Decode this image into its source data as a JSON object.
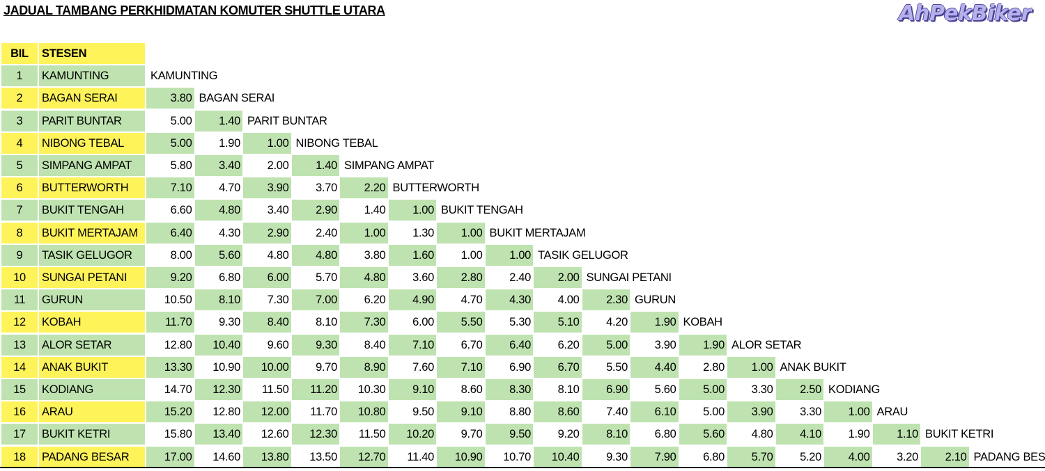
{
  "title": "JADUAL TAMBANG PERKHIDMATAN KOMUTER  SHUTTLE UTARA",
  "brand": "AhPekBiker",
  "colors": {
    "green": "#bfe3b0",
    "yellow": "#fff35a",
    "white": "#ffffff",
    "logo": "#b6b1ea"
  },
  "headers": {
    "bil": "BIL",
    "stesen": "STESEN"
  },
  "stations": [
    "KAMUNTING",
    "BAGAN SERAI",
    "PARIT BUNTAR",
    "NIBONG TEBAL",
    "SIMPANG AMPAT",
    "BUTTERWORTH",
    "BUKIT TENGAH",
    "BUKIT MERTAJAM",
    "TASIK GELUGOR",
    "SUNGAI PETANI",
    "GURUN",
    "KOBAH",
    "ALOR SETAR",
    "ANAK BUKIT",
    "KODIANG",
    "ARAU",
    "BUKIT KETRI",
    "PADANG BESAR"
  ],
  "fares": [
    [],
    [
      "3.80"
    ],
    [
      "5.00",
      "1.40"
    ],
    [
      "5.00",
      "1.90",
      "1.00"
    ],
    [
      "5.80",
      "3.40",
      "2.00",
      "1.40"
    ],
    [
      "7.10",
      "4.70",
      "3.90",
      "3.70",
      "2.20"
    ],
    [
      "6.60",
      "4.80",
      "3.40",
      "2.90",
      "1.40",
      "1.00"
    ],
    [
      "6.40",
      "4.30",
      "2.90",
      "2.40",
      "1.00",
      "1.30",
      "1.00"
    ],
    [
      "8.00",
      "5.60",
      "4.80",
      "4.80",
      "3.80",
      "1.60",
      "1.00",
      "1.00"
    ],
    [
      "9.20",
      "6.80",
      "6.00",
      "5.70",
      "4.80",
      "3.60",
      "2.80",
      "2.40",
      "2.00"
    ],
    [
      "10.50",
      "8.10",
      "7.30",
      "7.00",
      "6.20",
      "4.90",
      "4.70",
      "4.30",
      "4.00",
      "2.30"
    ],
    [
      "11.70",
      "9.30",
      "8.40",
      "8.10",
      "7.30",
      "6.00",
      "5.50",
      "5.30",
      "5.10",
      "4.20",
      "1.90"
    ],
    [
      "12.80",
      "10.40",
      "9.60",
      "9.30",
      "8.40",
      "7.10",
      "6.70",
      "6.40",
      "6.20",
      "5.00",
      "3.90",
      "1.90"
    ],
    [
      "13.30",
      "10.90",
      "10.00",
      "9.70",
      "8.90",
      "7.60",
      "7.10",
      "6.90",
      "6.70",
      "5.50",
      "4.40",
      "2.80",
      "1.00"
    ],
    [
      "14.70",
      "12.30",
      "11.50",
      "11.20",
      "10.30",
      "9.10",
      "8.60",
      "8.30",
      "8.10",
      "6.90",
      "5.60",
      "5.00",
      "3.30",
      "2.50"
    ],
    [
      "15.20",
      "12.80",
      "12.00",
      "11.70",
      "10.80",
      "9.50",
      "9.10",
      "8.80",
      "8.60",
      "7.40",
      "6.10",
      "5.00",
      "3.90",
      "3.30",
      "1.00"
    ],
    [
      "15.80",
      "13.40",
      "12.60",
      "12.30",
      "11.50",
      "10.20",
      "9.70",
      "9.50",
      "9.20",
      "8.10",
      "6.80",
      "5.60",
      "4.80",
      "4.10",
      "1.90",
      "1.10"
    ],
    [
      "17.00",
      "14.60",
      "13.80",
      "13.50",
      "12.70",
      "11.40",
      "10.90",
      "10.70",
      "10.40",
      "9.30",
      "7.90",
      "6.80",
      "5.70",
      "5.20",
      "4.00",
      "3.20",
      "2.10"
    ]
  ]
}
